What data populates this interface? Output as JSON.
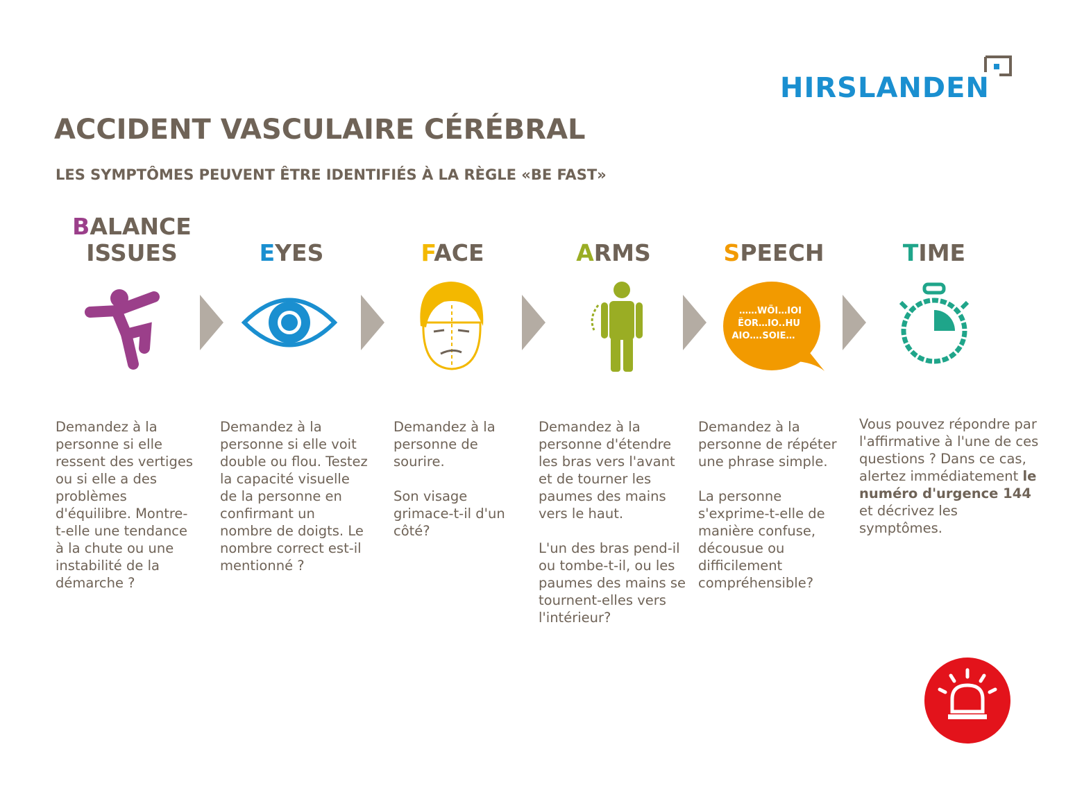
{
  "logo": "HIRSLANDEN",
  "title": "ACCIDENT VASCULAIRE CÉRÉBRAL",
  "subtitle": "LES SYMPTÔMES PEUVENT ÊTRE IDENTIFIÉS À LA RÈGLE «BE FAST»",
  "steps": [
    {
      "letter": "B",
      "heading": [
        "ALANCE",
        "ISSUES"
      ],
      "color": "#9b3f8a",
      "paragraphs": [
        "Demandez à la personne si elle ressent des vertiges ou si elle a des problèmes d'équilibre. Montre-t-elle une tendance à la chute ou une instabilité de la démarche ?"
      ]
    },
    {
      "letter": "E",
      "heading": [
        "YES"
      ],
      "color": "#1a8fd0",
      "paragraphs": [
        "Demandez à la personne si elle voit double ou flou. Testez la capacité visuelle de la personne en confirmant un nombre de doigts. Le nombre correct est-il mentionné ?"
      ]
    },
    {
      "letter": "F",
      "heading": [
        "ACE"
      ],
      "color": "#f3b800",
      "paragraphs": [
        "Demandez à la personne de sourire.",
        "Son visage grimace-t-il d'un côté?"
      ]
    },
    {
      "letter": "A",
      "heading": [
        "RMS"
      ],
      "color": "#9aad24",
      "paragraphs": [
        "Demandez à la personne d'étendre les bras vers l'avant et de tourner les paumes des mains vers le haut.",
        "L'un des bras pend-il ou tombe-t-il, ou les paumes des mains se tournent-elles vers l'intérieur?"
      ]
    },
    {
      "letter": "S",
      "heading": [
        "PEECH"
      ],
      "color": "#f29a00",
      "bubble": [
        "……WÖI…IOI",
        "ËOR…IO..HU",
        "AIO….SOIE…"
      ],
      "paragraphs": [
        "Demandez à la personne de répéter une phrase simple.",
        "La personne s'exprime-t-elle de manière confuse, décousue ou difficilement compréhensible?"
      ]
    },
    {
      "letter": "T",
      "heading": [
        "IME"
      ],
      "color": "#1fa58a",
      "text_before": "Vous pouvez répondre par l'affirmative à l'une de ces questions ? Dans ce cas, alertez immédiatement ",
      "text_bold": "le numéro d'urgence 144",
      "text_after": " et décrivez les symptômes."
    }
  ]
}
